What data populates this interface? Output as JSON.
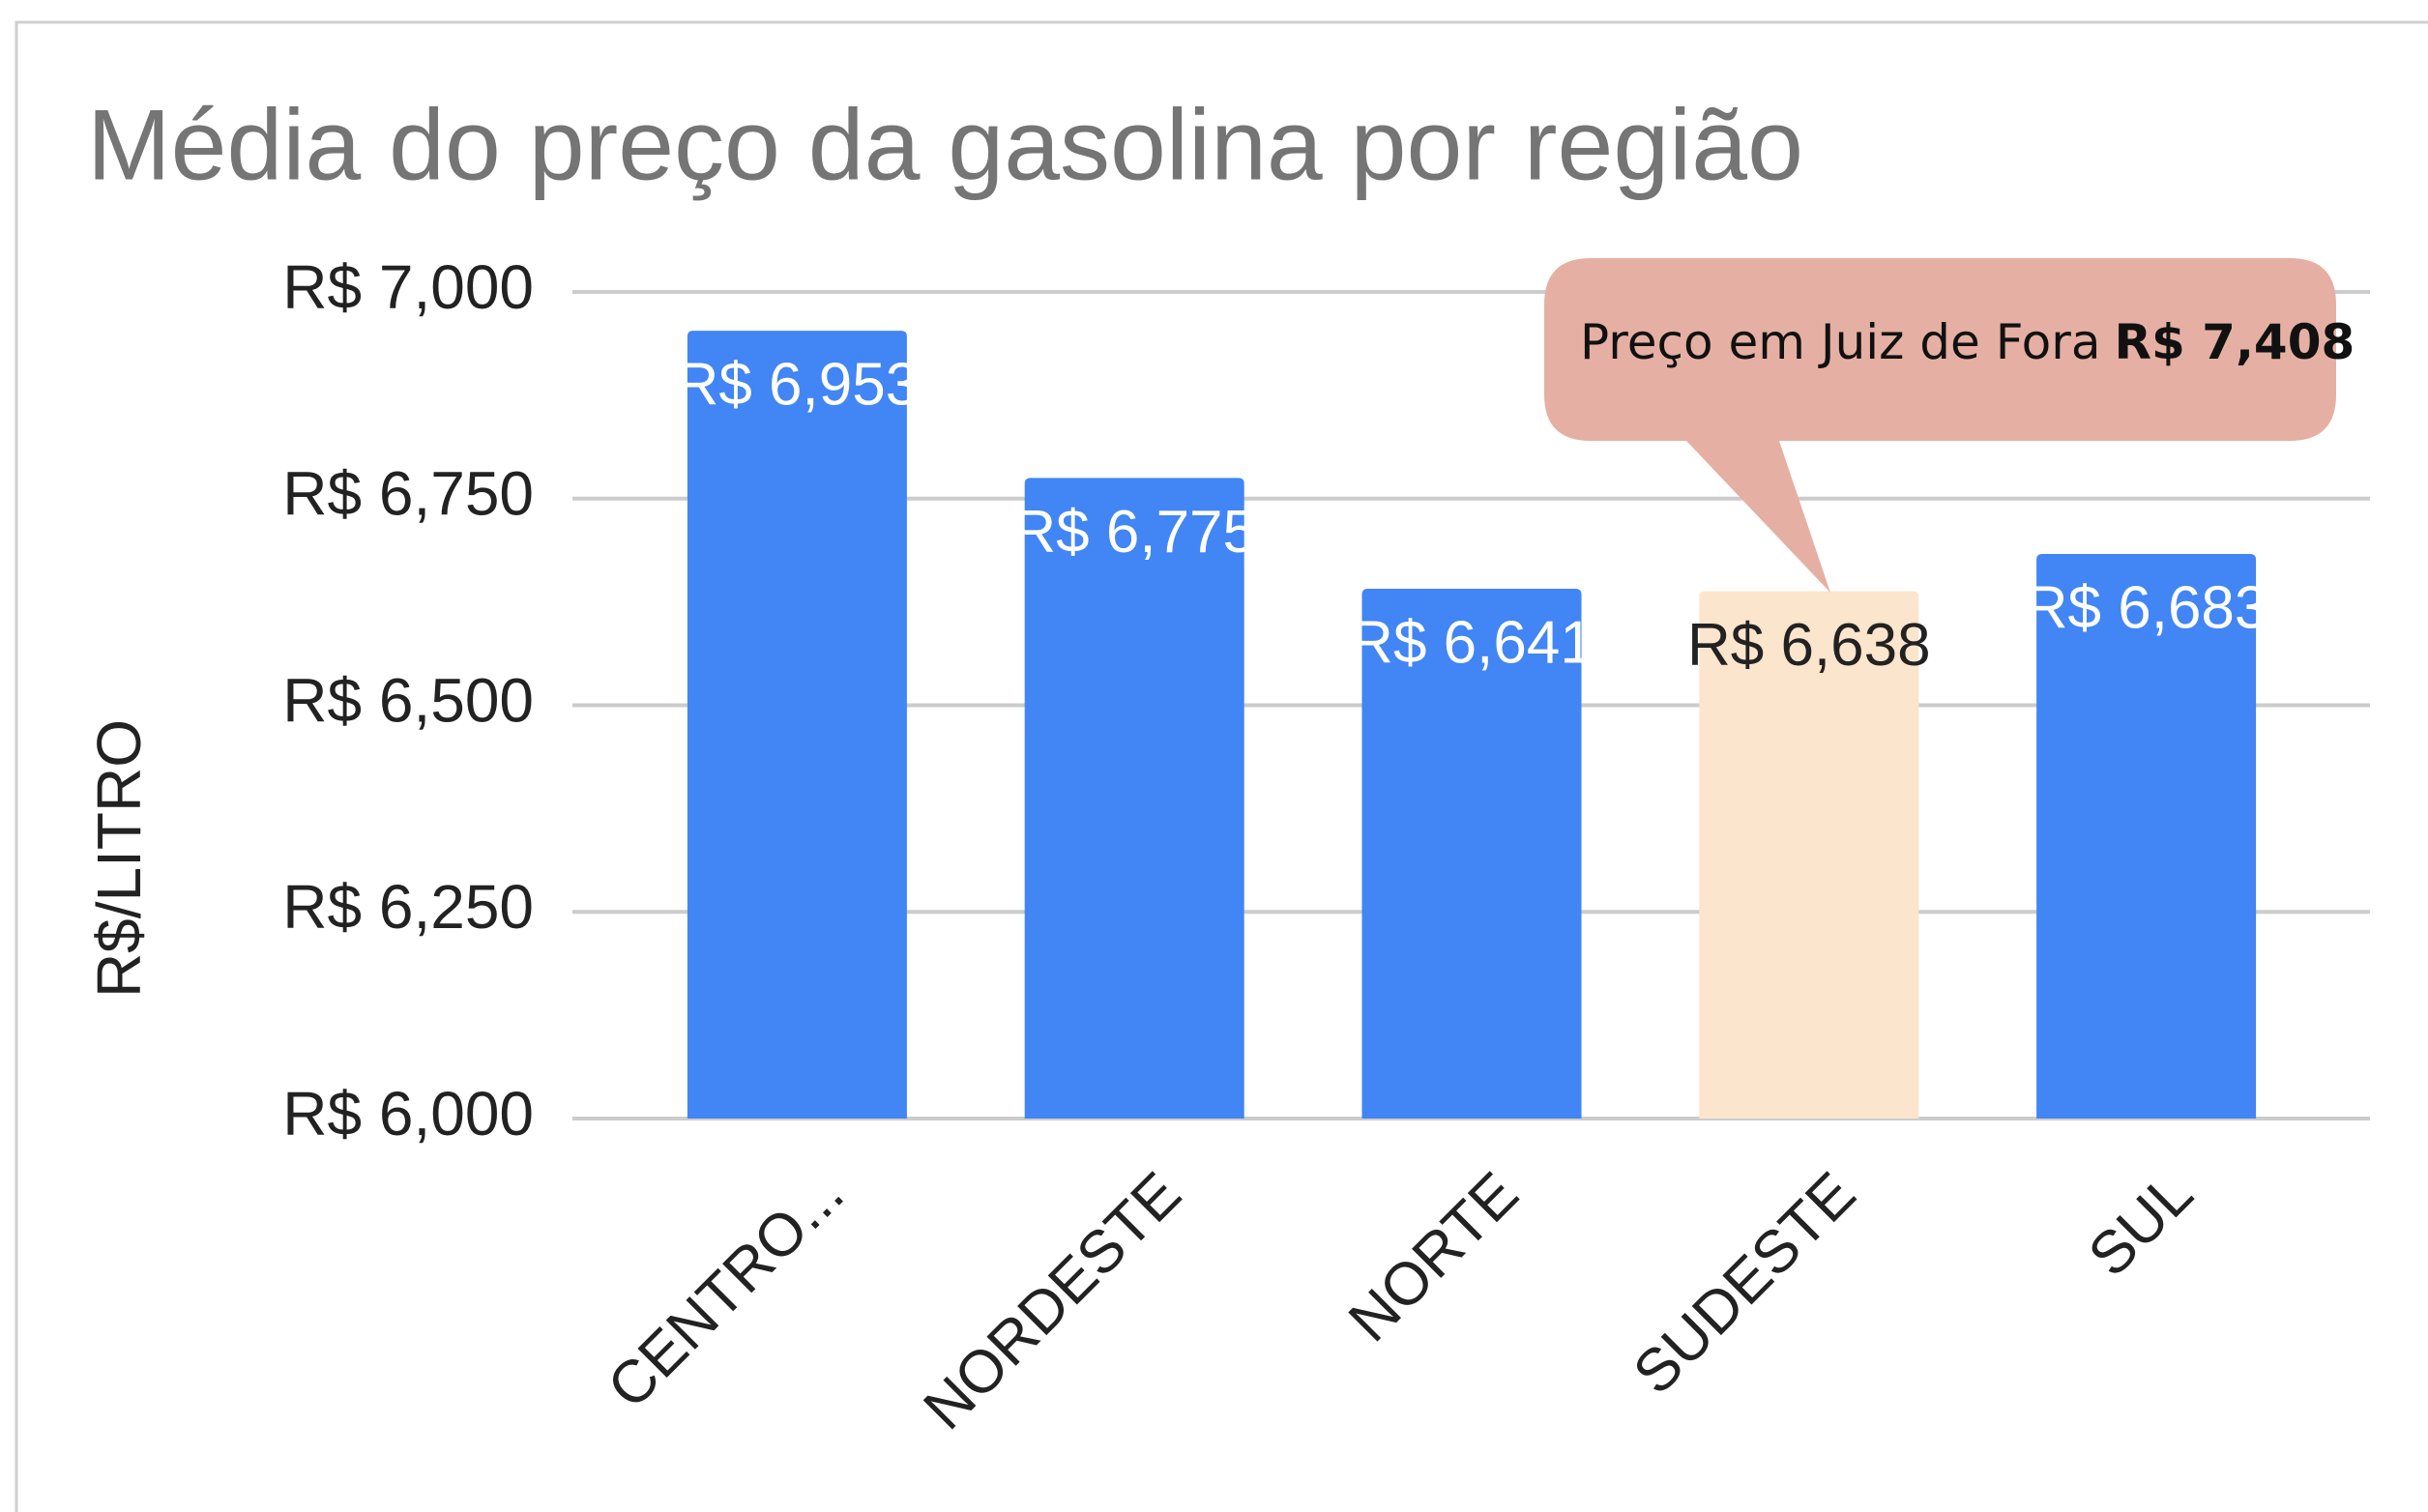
{
  "chart_data": {
    "type": "bar",
    "title": "Média do preço da gasolina por região",
    "y_axis_label": "R$/LITRO",
    "categories": [
      "CENTRO...",
      "NORDESTE",
      "NORTE",
      "SUDESTE",
      "SUL"
    ],
    "values": [
      6.953,
      6.775,
      6.641,
      6.638,
      6.683
    ],
    "value_labels": [
      "R$ 6,953",
      "R$ 6,775",
      "R$ 6,641",
      "R$ 6,638",
      "R$ 6,683"
    ],
    "colors": [
      "#4285f4",
      "#4285f4",
      "#4285f4",
      "#fce5cd",
      "#4285f4"
    ],
    "label_colors": [
      "#ffffff",
      "#ffffff",
      "#ffffff",
      "#222222",
      "#ffffff"
    ],
    "ylim": [
      6,
      7
    ],
    "yticks": [
      {
        "value": 6,
        "label": "R$ 6,000"
      },
      {
        "value": 6.25,
        "label": "R$ 6,250"
      },
      {
        "value": 6.5,
        "label": "R$ 6,500"
      },
      {
        "value": 6.75,
        "label": "R$ 6,750"
      },
      {
        "value": 7,
        "label": "R$ 7,000"
      }
    ],
    "grid": true,
    "annotation": {
      "text": "Preço em Juiz de Fora",
      "highlight": "R$ 7,408"
    }
  }
}
